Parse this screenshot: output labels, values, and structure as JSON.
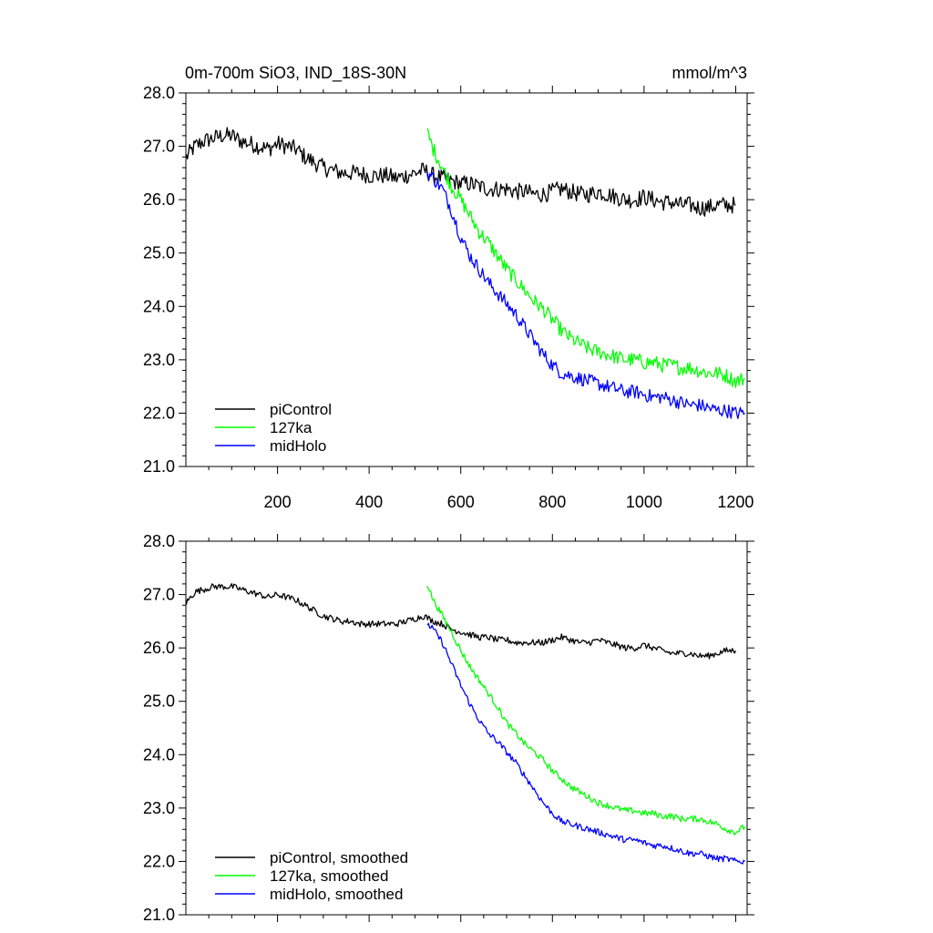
{
  "figure": {
    "title_left": "0m-700m SiO3, IND_18S-30N",
    "title_right": "mmol/m^3"
  },
  "chart_data": [
    {
      "type": "line",
      "panel": "top",
      "xlim": [
        0,
        1225
      ],
      "ylim": [
        21.0,
        28.0
      ],
      "yticks": [
        21.0,
        22.0,
        23.0,
        24.0,
        25.0,
        26.0,
        27.0,
        28.0
      ],
      "ytick_labels": [
        "21.0",
        "22.0",
        "23.0",
        "24.0",
        "25.0",
        "26.0",
        "27.0",
        "28.0"
      ],
      "xticks": [
        200,
        400,
        600,
        800,
        1000,
        1200
      ],
      "xtick_labels": [
        "200",
        "400",
        "600",
        "800",
        "1000",
        "1200"
      ],
      "legend_position": "bottom-left",
      "series": [
        {
          "name": "piControl",
          "color": "#000000",
          "x": [
            1,
            20,
            40,
            60,
            80,
            100,
            120,
            140,
            160,
            180,
            200,
            220,
            240,
            260,
            280,
            300,
            320,
            340,
            360,
            380,
            400,
            420,
            440,
            460,
            480,
            500,
            520,
            540,
            560,
            580,
            600,
            620,
            640,
            660,
            680,
            700,
            720,
            740,
            760,
            780,
            800,
            820,
            840,
            860,
            880,
            900,
            920,
            940,
            960,
            980,
            1000,
            1020,
            1040,
            1060,
            1080,
            1100,
            1120,
            1140,
            1160,
            1180,
            1200
          ],
          "y": [
            26.8,
            27.0,
            27.1,
            27.15,
            27.2,
            27.2,
            27.1,
            27.05,
            27.0,
            26.95,
            27.05,
            27.0,
            26.95,
            26.8,
            26.7,
            26.6,
            26.55,
            26.5,
            26.5,
            26.5,
            26.45,
            26.45,
            26.45,
            26.4,
            26.45,
            26.5,
            26.55,
            26.45,
            26.4,
            26.35,
            26.3,
            26.3,
            26.25,
            26.2,
            26.2,
            26.2,
            26.15,
            26.15,
            26.1,
            26.1,
            26.15,
            26.2,
            26.15,
            26.1,
            26.1,
            26.15,
            26.1,
            26.05,
            26.0,
            26.0,
            26.05,
            26.0,
            25.95,
            25.95,
            25.9,
            25.9,
            25.85,
            25.85,
            25.9,
            25.9,
            25.9
          ],
          "noise": 0.16
        },
        {
          "name": "127ka",
          "color": "#00ff00",
          "x": [
            527,
            540,
            560,
            580,
            600,
            620,
            640,
            660,
            680,
            700,
            720,
            740,
            760,
            780,
            800,
            820,
            840,
            860,
            880,
            900,
            920,
            940,
            960,
            980,
            1000,
            1020,
            1040,
            1060,
            1080,
            1100,
            1120,
            1140,
            1160,
            1180,
            1200,
            1220
          ],
          "y": [
            27.25,
            26.95,
            26.6,
            26.25,
            26.0,
            25.7,
            25.4,
            25.2,
            24.95,
            24.7,
            24.5,
            24.3,
            24.1,
            23.95,
            23.75,
            23.55,
            23.4,
            23.3,
            23.2,
            23.15,
            23.1,
            23.05,
            23.0,
            23.0,
            22.95,
            22.95,
            22.9,
            22.9,
            22.85,
            22.85,
            22.8,
            22.75,
            22.75,
            22.7,
            22.6,
            22.65
          ],
          "noise": 0.14
        },
        {
          "name": "midHolo",
          "color": "#0000ff",
          "x": [
            527,
            540,
            560,
            580,
            600,
            620,
            640,
            660,
            680,
            700,
            720,
            740,
            760,
            780,
            800,
            820,
            840,
            860,
            880,
            900,
            920,
            940,
            960,
            980,
            1000,
            1020,
            1040,
            1060,
            1080,
            1100,
            1120,
            1140,
            1160,
            1180,
            1200,
            1220
          ],
          "y": [
            26.5,
            26.4,
            26.2,
            25.8,
            25.3,
            24.95,
            24.7,
            24.45,
            24.25,
            24.05,
            23.85,
            23.6,
            23.35,
            23.1,
            22.9,
            22.75,
            22.7,
            22.65,
            22.6,
            22.55,
            22.5,
            22.45,
            22.4,
            22.4,
            22.35,
            22.3,
            22.3,
            22.25,
            22.2,
            22.15,
            22.15,
            22.1,
            22.05,
            22.05,
            22.0,
            22.0
          ],
          "noise": 0.13
        }
      ]
    },
    {
      "type": "line",
      "panel": "bottom",
      "xlim": [
        0,
        1225
      ],
      "ylim": [
        21.0,
        28.0
      ],
      "yticks": [
        21.0,
        22.0,
        23.0,
        24.0,
        25.0,
        26.0,
        27.0,
        28.0
      ],
      "ytick_labels": [
        "21.0",
        "22.0",
        "23.0",
        "24.0",
        "25.0",
        "26.0",
        "27.0",
        "28.0"
      ],
      "xticks": [
        200,
        400,
        600,
        800,
        1000,
        1200
      ],
      "legend_position": "bottom-left",
      "series": [
        {
          "name": "piControl, smoothed",
          "color": "#000000",
          "x": [
            1,
            20,
            40,
            60,
            80,
            100,
            120,
            140,
            160,
            180,
            200,
            220,
            240,
            260,
            280,
            300,
            320,
            340,
            360,
            380,
            400,
            420,
            440,
            460,
            480,
            500,
            520,
            540,
            560,
            580,
            600,
            620,
            640,
            660,
            680,
            700,
            720,
            740,
            760,
            780,
            800,
            820,
            840,
            860,
            880,
            900,
            920,
            940,
            960,
            980,
            1000,
            1020,
            1040,
            1060,
            1080,
            1100,
            1120,
            1140,
            1160,
            1180,
            1200
          ],
          "y": [
            26.85,
            27.05,
            27.1,
            27.15,
            27.15,
            27.15,
            27.1,
            27.05,
            27.0,
            26.95,
            27.0,
            26.95,
            26.9,
            26.8,
            26.7,
            26.6,
            26.55,
            26.5,
            26.5,
            26.45,
            26.45,
            26.45,
            26.45,
            26.45,
            26.5,
            26.55,
            26.6,
            26.5,
            26.45,
            26.35,
            26.3,
            26.25,
            26.2,
            26.2,
            26.15,
            26.15,
            26.1,
            26.1,
            26.1,
            26.1,
            26.15,
            26.2,
            26.15,
            26.1,
            26.1,
            26.15,
            26.1,
            26.05,
            26.0,
            26.0,
            26.05,
            26.0,
            25.95,
            25.9,
            25.9,
            25.9,
            25.85,
            25.85,
            25.9,
            25.95,
            25.95
          ],
          "noise": 0.06
        },
        {
          "name": "127ka, smoothed",
          "color": "#00ff00",
          "x": [
            527,
            540,
            560,
            580,
            600,
            620,
            640,
            660,
            680,
            700,
            720,
            740,
            760,
            780,
            800,
            820,
            840,
            860,
            880,
            900,
            920,
            940,
            960,
            980,
            1000,
            1020,
            1040,
            1060,
            1080,
            1100,
            1120,
            1140,
            1160,
            1180,
            1200,
            1220
          ],
          "y": [
            27.2,
            26.9,
            26.6,
            26.3,
            25.95,
            25.65,
            25.4,
            25.15,
            24.9,
            24.6,
            24.4,
            24.2,
            24.05,
            23.9,
            23.7,
            23.55,
            23.4,
            23.3,
            23.2,
            23.1,
            23.05,
            23.0,
            22.95,
            22.95,
            22.9,
            22.9,
            22.85,
            22.85,
            22.8,
            22.8,
            22.8,
            22.75,
            22.7,
            22.6,
            22.55,
            22.65
          ],
          "noise": 0.06
        },
        {
          "name": "midHolo, smoothed",
          "color": "#0000ff",
          "x": [
            527,
            540,
            560,
            580,
            600,
            620,
            640,
            660,
            680,
            700,
            720,
            740,
            760,
            780,
            800,
            820,
            840,
            860,
            880,
            900,
            920,
            940,
            960,
            980,
            1000,
            1020,
            1040,
            1060,
            1080,
            1100,
            1120,
            1140,
            1160,
            1180,
            1200,
            1220
          ],
          "y": [
            26.45,
            26.35,
            26.1,
            25.7,
            25.3,
            24.95,
            24.65,
            24.4,
            24.25,
            24.05,
            23.85,
            23.6,
            23.35,
            23.1,
            22.9,
            22.75,
            22.7,
            22.65,
            22.6,
            22.55,
            22.5,
            22.45,
            22.4,
            22.4,
            22.35,
            22.3,
            22.3,
            22.25,
            22.2,
            22.15,
            22.15,
            22.1,
            22.05,
            22.05,
            22.0,
            22.0
          ],
          "noise": 0.06
        }
      ]
    }
  ]
}
